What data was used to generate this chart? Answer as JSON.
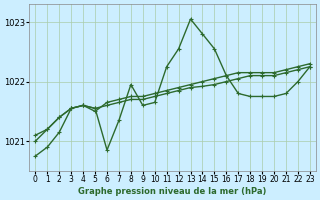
{
  "title": "Graphe pression niveau de la mer (hPa)",
  "background_color": "#cceeff",
  "grid_color": "#aaccaa",
  "line_color": "#2d6a2d",
  "x_labels": [
    "0",
    "1",
    "2",
    "3",
    "4",
    "5",
    "6",
    "7",
    "8",
    "9",
    "10",
    "11",
    "12",
    "13",
    "14",
    "15",
    "16",
    "17",
    "18",
    "19",
    "20",
    "21",
    "22",
    "23"
  ],
  "y_ticks": [
    1021,
    1022,
    1023
  ],
  "ylim": [
    1020.5,
    1023.3
  ],
  "xlim": [
    -0.5,
    23.5
  ],
  "series1": [
    1020.75,
    1020.9,
    1021.15,
    1021.55,
    1021.6,
    1021.55,
    1020.85,
    1021.35,
    1021.95,
    1021.6,
    1021.65,
    1022.25,
    1022.55,
    1023.05,
    1022.8,
    1022.55,
    1022.1,
    1021.8,
    1021.75,
    1021.75,
    1021.75,
    1021.8,
    1022.0,
    1022.25
  ],
  "series2": [
    1021.0,
    1021.2,
    1021.4,
    1021.55,
    1021.6,
    1021.5,
    1021.65,
    1021.7,
    1021.75,
    1021.75,
    1021.8,
    1021.85,
    1021.9,
    1021.95,
    1022.0,
    1022.05,
    1022.1,
    1022.15,
    1022.15,
    1022.15,
    1022.15,
    1022.2,
    1022.25,
    1022.3
  ],
  "series3": [
    1021.1,
    1021.2,
    1021.4,
    1021.55,
    1021.6,
    1021.55,
    1021.6,
    1021.65,
    1021.7,
    1021.7,
    1021.75,
    1021.8,
    1021.85,
    1021.9,
    1021.92,
    1021.95,
    1022.0,
    1022.05,
    1022.1,
    1022.1,
    1022.1,
    1022.15,
    1022.2,
    1022.25
  ]
}
